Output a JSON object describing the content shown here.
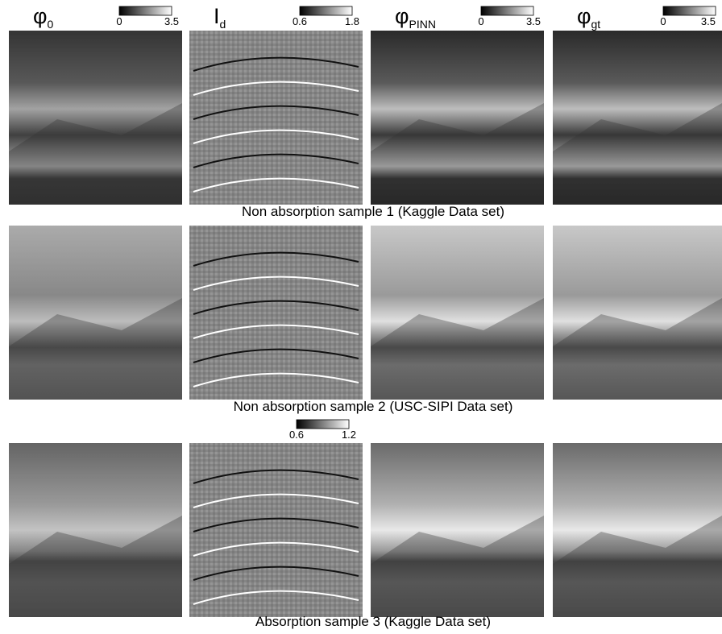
{
  "columns": [
    {
      "symbol": "φ",
      "subscript": "0",
      "colorbar": {
        "min": 0,
        "max": 3.5
      }
    },
    {
      "symbol": "I",
      "subscript": "d",
      "colorbar": {
        "min": 0.6,
        "max": 1.8
      }
    },
    {
      "symbol": "φ",
      "subscript": "PINN",
      "colorbar": {
        "min": 0,
        "max": 3.5
      }
    },
    {
      "symbol": "φ",
      "subscript": "gt",
      "colorbar": {
        "min": 0,
        "max": 3.5
      }
    }
  ],
  "rows": [
    {
      "caption": "Non absorption sample 1 (Kaggle Data set)"
    },
    {
      "caption": "Non absorption sample 2 (USC-SIPI Data set)"
    },
    {
      "caption": "Absorption sample 3 (Kaggle Data set)",
      "colorbar": {
        "min": 0.6,
        "max": 1.2
      }
    }
  ]
}
